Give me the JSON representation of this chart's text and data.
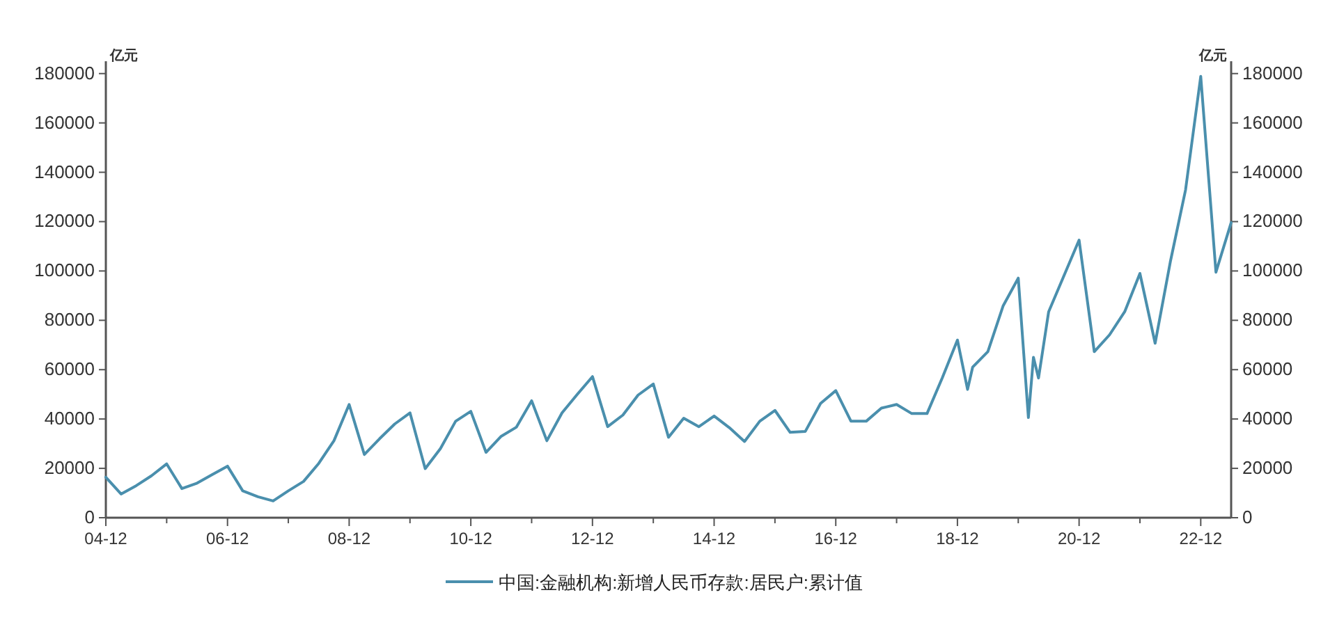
{
  "chart_data": {
    "type": "line",
    "ylabel": "亿元",
    "y2label": "亿元",
    "x": [
      "2004-12",
      "2005-03",
      "2005-06",
      "2005-09",
      "2005-12",
      "2006-03",
      "2006-06",
      "2006-09",
      "2006-12",
      "2007-03",
      "2007-06",
      "2007-09",
      "2007-12",
      "2008-03",
      "2008-06",
      "2008-09",
      "2008-12",
      "2009-03",
      "2009-06",
      "2009-09",
      "2009-12",
      "2010-03",
      "2010-06",
      "2010-09",
      "2010-12",
      "2011-03",
      "2011-06",
      "2011-09",
      "2011-12",
      "2012-03",
      "2012-06",
      "2012-09",
      "2012-12",
      "2013-03",
      "2013-06",
      "2013-09",
      "2013-12",
      "2014-03",
      "2014-06",
      "2014-09",
      "2014-12",
      "2015-03",
      "2015-06",
      "2015-09",
      "2015-12",
      "2016-03",
      "2016-06",
      "2016-09",
      "2016-12",
      "2017-03",
      "2017-06",
      "2017-09",
      "2017-12",
      "2018-03",
      "2018-06",
      "2018-09",
      "2018-12",
      "2019-02",
      "2019-03",
      "2019-06",
      "2019-09",
      "2019-12",
      "2020-02",
      "2020-03",
      "2020-04",
      "2020-06",
      "2020-09",
      "2020-12",
      "2021-03",
      "2021-06",
      "2021-09",
      "2021-12",
      "2022-03",
      "2022-06",
      "2022-09",
      "2022-12",
      "2023-03",
      "2023-06"
    ],
    "series": [
      {
        "name": "中国:金融机构:新增人民币存款:居民户:累计值",
        "color": "#4a8fad",
        "values": [
          16400,
          9600,
          13000,
          17000,
          21800,
          11800,
          14000,
          17500,
          20900,
          10900,
          8500,
          6800,
          10900,
          14700,
          22000,
          31200,
          45900,
          25600,
          32000,
          38000,
          42500,
          19900,
          28000,
          39100,
          43100,
          26500,
          33000,
          36700,
          47400,
          31200,
          42500,
          50000,
          57200,
          36900,
          41600,
          49700,
          54200,
          32600,
          40300,
          36900,
          41200,
          36500,
          30900,
          39100,
          43500,
          34600,
          35000,
          46300,
          51500,
          39100,
          39100,
          44400,
          45900,
          42200,
          42200,
          56600,
          72000,
          52000,
          61000,
          67300,
          85800,
          97100,
          40600,
          65000,
          56600,
          83500,
          98000,
          112500,
          67300,
          74100,
          83500,
          99000,
          70700,
          103700,
          132800,
          178900,
          99500,
          119600
        ]
      }
    ],
    "xlim": [
      "2004-12",
      "2023-06"
    ],
    "xticks": [
      {
        "value": "2004-12",
        "label": "04-12"
      },
      {
        "value": "2005-12",
        "label": null
      },
      {
        "value": "2006-12",
        "label": "06-12"
      },
      {
        "value": "2007-12",
        "label": null
      },
      {
        "value": "2008-12",
        "label": "08-12"
      },
      {
        "value": "2009-12",
        "label": null
      },
      {
        "value": "2010-12",
        "label": "10-12"
      },
      {
        "value": "2011-12",
        "label": null
      },
      {
        "value": "2012-12",
        "label": "12-12"
      },
      {
        "value": "2013-12",
        "label": null
      },
      {
        "value": "2014-12",
        "label": "14-12"
      },
      {
        "value": "2015-12",
        "label": null
      },
      {
        "value": "2016-12",
        "label": "16-12"
      },
      {
        "value": "2017-12",
        "label": null
      },
      {
        "value": "2018-12",
        "label": "18-12"
      },
      {
        "value": "2019-12",
        "label": null
      },
      {
        "value": "2020-12",
        "label": "20-12"
      },
      {
        "value": "2021-12",
        "label": null
      },
      {
        "value": "2022-12",
        "label": "22-12"
      }
    ],
    "ylim": [
      0,
      185000
    ],
    "yticks": [
      0,
      20000,
      40000,
      60000,
      80000,
      100000,
      120000,
      140000,
      160000,
      180000
    ],
    "y2lim": [
      0,
      185000
    ],
    "y2ticks": [
      0,
      20000,
      40000,
      60000,
      80000,
      100000,
      120000,
      140000,
      160000,
      180000
    ],
    "legend": "bottom",
    "line_style": "solid"
  }
}
